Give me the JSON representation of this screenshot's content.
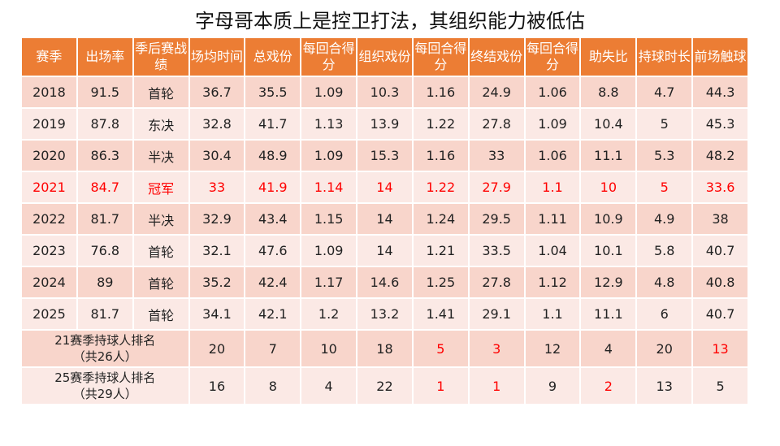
{
  "title": "字母哥本质上是控卫打法，其组织能力被低估",
  "colors": {
    "header_bg": "#ec7d34",
    "row_dark": "#f8d5cb",
    "row_light": "#fbe9e5",
    "highlight": "#ff0000"
  },
  "chart_data": {
    "type": "table",
    "headers": [
      "赛季",
      "出场率",
      "季后赛战绩",
      "场均时间",
      "总戏份",
      "每回合得分",
      "组织戏份",
      "每回合得分",
      "终结戏份",
      "每回合得分",
      "助失比",
      "持球时长",
      "前场触球"
    ],
    "rows": [
      {
        "cells": [
          "2018",
          "91.5",
          "首轮",
          "36.7",
          "35.5",
          "1.09",
          "10.3",
          "1.16",
          "24.9",
          "1.06",
          "8.8",
          "4.7",
          "44.3"
        ],
        "highlight": false
      },
      {
        "cells": [
          "2019",
          "87.8",
          "东决",
          "32.8",
          "41.7",
          "1.13",
          "13.9",
          "1.22",
          "27.8",
          "1.09",
          "10.4",
          "5",
          "45.3"
        ],
        "highlight": false
      },
      {
        "cells": [
          "2020",
          "86.3",
          "半决",
          "30.4",
          "48.9",
          "1.09",
          "15.3",
          "1.16",
          "33",
          "1.06",
          "11.1",
          "5.3",
          "48.2"
        ],
        "highlight": false
      },
      {
        "cells": [
          "2021",
          "84.7",
          "冠军",
          "33",
          "41.9",
          "1.14",
          "14",
          "1.22",
          "27.9",
          "1.1",
          "10",
          "5",
          "33.6"
        ],
        "highlight": true
      },
      {
        "cells": [
          "2022",
          "81.7",
          "半决",
          "32.9",
          "43.4",
          "1.15",
          "14",
          "1.24",
          "29.5",
          "1.11",
          "10.9",
          "4.9",
          "38"
        ],
        "highlight": false
      },
      {
        "cells": [
          "2023",
          "76.8",
          "首轮",
          "32.1",
          "47.6",
          "1.09",
          "14",
          "1.21",
          "33.5",
          "1.04",
          "10.1",
          "5.8",
          "40.7"
        ],
        "highlight": false
      },
      {
        "cells": [
          "2024",
          "89",
          "首轮",
          "35.2",
          "42.4",
          "1.17",
          "14.6",
          "1.25",
          "27.8",
          "1.12",
          "12.9",
          "4.8",
          "40.8"
        ],
        "highlight": false
      },
      {
        "cells": [
          "2025",
          "81.7",
          "首轮",
          "34.1",
          "42.1",
          "1.2",
          "13.2",
          "1.41",
          "29.1",
          "1.1",
          "11.1",
          "6",
          "40.7"
        ],
        "highlight": false
      }
    ],
    "rank_rows": [
      {
        "label_line1": "21赛季持球人排名",
        "label_line2": "（共26人）",
        "values": [
          "20",
          "7",
          "10",
          "18",
          "5",
          "3",
          "12",
          "4",
          "20",
          "13"
        ],
        "red": [
          false,
          false,
          false,
          false,
          true,
          true,
          false,
          false,
          false,
          true
        ]
      },
      {
        "label_line1": "25赛季持球人排名",
        "label_line2": "（共29人）",
        "values": [
          "16",
          "8",
          "4",
          "22",
          "1",
          "1",
          "9",
          "2",
          "13",
          "5"
        ],
        "red": [
          false,
          false,
          false,
          false,
          true,
          true,
          false,
          true,
          false,
          false
        ]
      }
    ]
  }
}
